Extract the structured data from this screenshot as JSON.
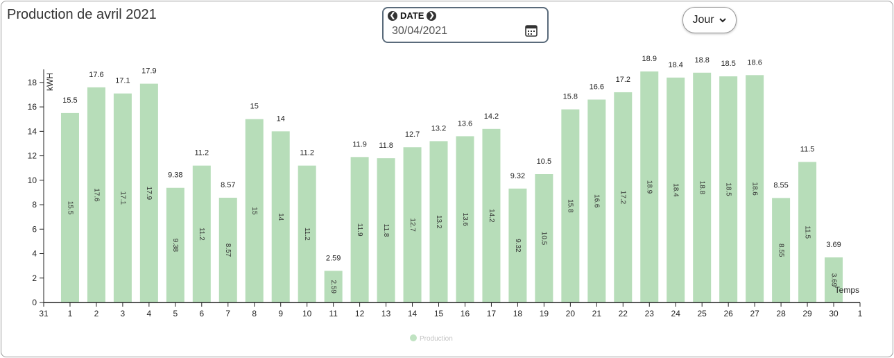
{
  "header": {
    "title": "Production de avril 2021",
    "date_label": "DATE",
    "date_value": "30/04/2021",
    "period_label": "Jour"
  },
  "colors": {
    "bar": "#b7ddb9",
    "legend_dot": "#c0e3c2",
    "axis": "#222222"
  },
  "chart_data": {
    "type": "bar",
    "x_ticks": [
      "31",
      "1",
      "2",
      "3",
      "4",
      "5",
      "6",
      "7",
      "8",
      "9",
      "10",
      "11",
      "12",
      "13",
      "14",
      "15",
      "16",
      "17",
      "18",
      "19",
      "20",
      "21",
      "22",
      "23",
      "24",
      "25",
      "26",
      "27",
      "28",
      "29",
      "30",
      "1"
    ],
    "categories": [
      "1",
      "2",
      "3",
      "4",
      "5",
      "6",
      "7",
      "8",
      "9",
      "10",
      "11",
      "12",
      "13",
      "14",
      "15",
      "16",
      "17",
      "18",
      "19",
      "20",
      "21",
      "22",
      "23",
      "24",
      "25",
      "26",
      "27",
      "28",
      "29",
      "30"
    ],
    "series": [
      {
        "name": "Production",
        "values": [
          15.5,
          17.6,
          17.1,
          17.9,
          9.38,
          11.2,
          8.57,
          15,
          14,
          11.2,
          2.59,
          11.9,
          11.8,
          12.7,
          13.2,
          13.6,
          14.2,
          9.32,
          10.5,
          15.8,
          16.6,
          17.2,
          18.9,
          18.4,
          18.8,
          18.5,
          18.6,
          8.55,
          11.5,
          3.69
        ],
        "labels": [
          "15.5",
          "17.6",
          "17.1",
          "17.9",
          "9.38",
          "11.2",
          "8.57",
          "15",
          "14",
          "11.2",
          "2.59",
          "11.9",
          "11.8",
          "12.7",
          "13.2",
          "13.6",
          "14.2",
          "9.32",
          "10.5",
          "15.8",
          "16.6",
          "17.2",
          "18.9",
          "18.4",
          "18.8",
          "18.5",
          "18.6",
          "8.55",
          "11.5",
          "3.69"
        ]
      }
    ],
    "y_ticks": [
      0,
      2,
      4,
      6,
      8,
      10,
      12,
      14,
      16,
      18
    ],
    "ylabel": "kWH",
    "xlabel": "Temps",
    "ylim": [
      0,
      18.9
    ],
    "legend": "bottom-center",
    "grid": false
  }
}
